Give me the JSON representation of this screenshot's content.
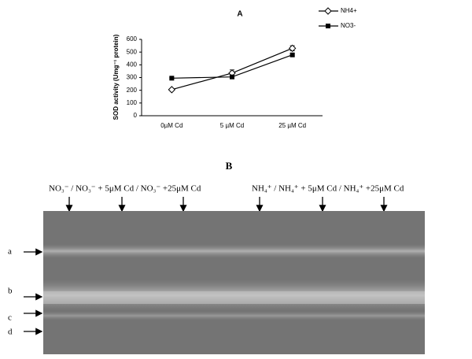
{
  "chart_data": {
    "type": "line",
    "title": "A",
    "y_label": "SOD activity (Umg⁻¹ protein)",
    "categories": [
      "0µM Cd",
      "5 µM Cd",
      "25 µM Cd"
    ],
    "series": [
      {
        "name": "NH4+",
        "color": "#000000",
        "marker": "open-diamond",
        "values": [
          205,
          335,
          530
        ],
        "errors": [
          5,
          25,
          20
        ]
      },
      {
        "name": "NO3-",
        "color": "#000000",
        "marker": "filled-square",
        "values": [
          295,
          305,
          478
        ],
        "errors": [
          5,
          10,
          8
        ]
      }
    ],
    "ylim": [
      0,
      600
    ],
    "yticks": [
      0,
      100,
      200,
      300,
      400,
      500,
      600
    ],
    "grid": false
  },
  "gel": {
    "title": "B",
    "lane_labels": [
      "NO₃⁻ / NO₃⁻ + 5μM Cd / NO₃⁻ +25μM Cd",
      "NH₄⁺ / NH₄⁺ + 5μM Cd / NH₄⁺ +25μM Cd"
    ],
    "band_labels": [
      "a",
      "b",
      "c",
      "d"
    ]
  }
}
